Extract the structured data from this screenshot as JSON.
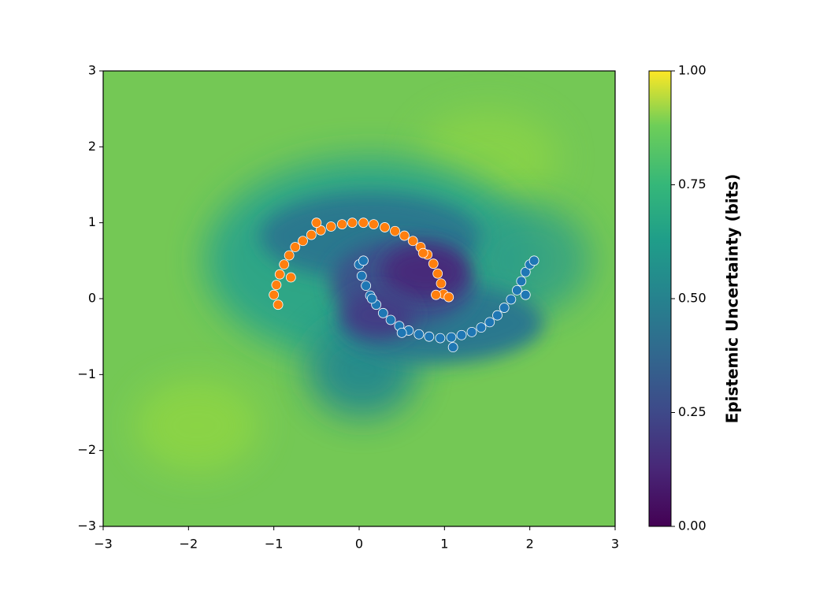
{
  "chart_data": {
    "type": "scatter",
    "series": [
      {
        "color": "#ff7f0e",
        "x": [
          -1.0,
          -0.97,
          -0.93,
          -0.88,
          -0.82,
          -0.75,
          -0.66,
          -0.56,
          -0.45,
          -0.33,
          -0.2,
          -0.08,
          0.05,
          0.17,
          0.3,
          0.42,
          0.53,
          0.63,
          0.72,
          0.8,
          0.87,
          0.92,
          0.96,
          0.99,
          -0.95,
          -0.8,
          0.9,
          1.05,
          -0.5,
          0.75
        ],
        "values": [
          0.05,
          0.18,
          0.32,
          0.45,
          0.57,
          0.68,
          0.76,
          0.84,
          0.9,
          0.95,
          0.98,
          1.0,
          1.0,
          0.98,
          0.94,
          0.89,
          0.83,
          0.76,
          0.68,
          0.58,
          0.46,
          0.33,
          0.2,
          0.06,
          -0.08,
          0.28,
          0.05,
          0.02,
          1.0,
          0.6
        ]
      },
      {
        "color": "#1f77b4",
        "x": [
          0.0,
          0.03,
          0.08,
          0.13,
          0.2,
          0.28,
          0.37,
          0.47,
          0.58,
          0.7,
          0.82,
          0.95,
          1.08,
          1.2,
          1.32,
          1.43,
          1.53,
          1.62,
          1.7,
          1.78,
          1.85,
          1.9,
          1.95,
          2.0,
          2.05,
          1.1,
          0.05,
          0.15,
          1.95,
          0.5
        ],
        "values": [
          0.45,
          0.3,
          0.17,
          0.04,
          -0.08,
          -0.19,
          -0.28,
          -0.36,
          -0.42,
          -0.47,
          -0.5,
          -0.52,
          -0.51,
          -0.48,
          -0.44,
          -0.38,
          -0.31,
          -0.22,
          -0.12,
          -0.01,
          0.11,
          0.23,
          0.35,
          0.45,
          0.5,
          -0.64,
          0.5,
          0.0,
          0.05,
          -0.45
        ]
      }
    ],
    "xlim": [
      -3,
      3
    ],
    "ylim": [
      -3,
      3
    ],
    "xticks": [
      {
        "value": -3,
        "label": "−3"
      },
      {
        "value": -2,
        "label": "−2"
      },
      {
        "value": -1,
        "label": "−1"
      },
      0,
      1,
      2,
      3
    ],
    "yticks": [
      {
        "value": -3,
        "label": "−3"
      },
      {
        "value": -2,
        "label": "−2"
      },
      {
        "value": -1,
        "label": "−1"
      },
      0,
      1,
      2,
      3
    ],
    "colorbar": {
      "label": "Epistemic Uncertainty (bits)",
      "clim": [
        0,
        1
      ],
      "ticks": [
        {
          "value": 0,
          "label": "0.00"
        },
        {
          "value": 0.25,
          "label": "0.25"
        },
        {
          "value": 0.5,
          "label": "0.50"
        },
        {
          "value": 0.75,
          "label": "0.75"
        },
        {
          "value": 1,
          "label": "1.00"
        }
      ]
    }
  }
}
